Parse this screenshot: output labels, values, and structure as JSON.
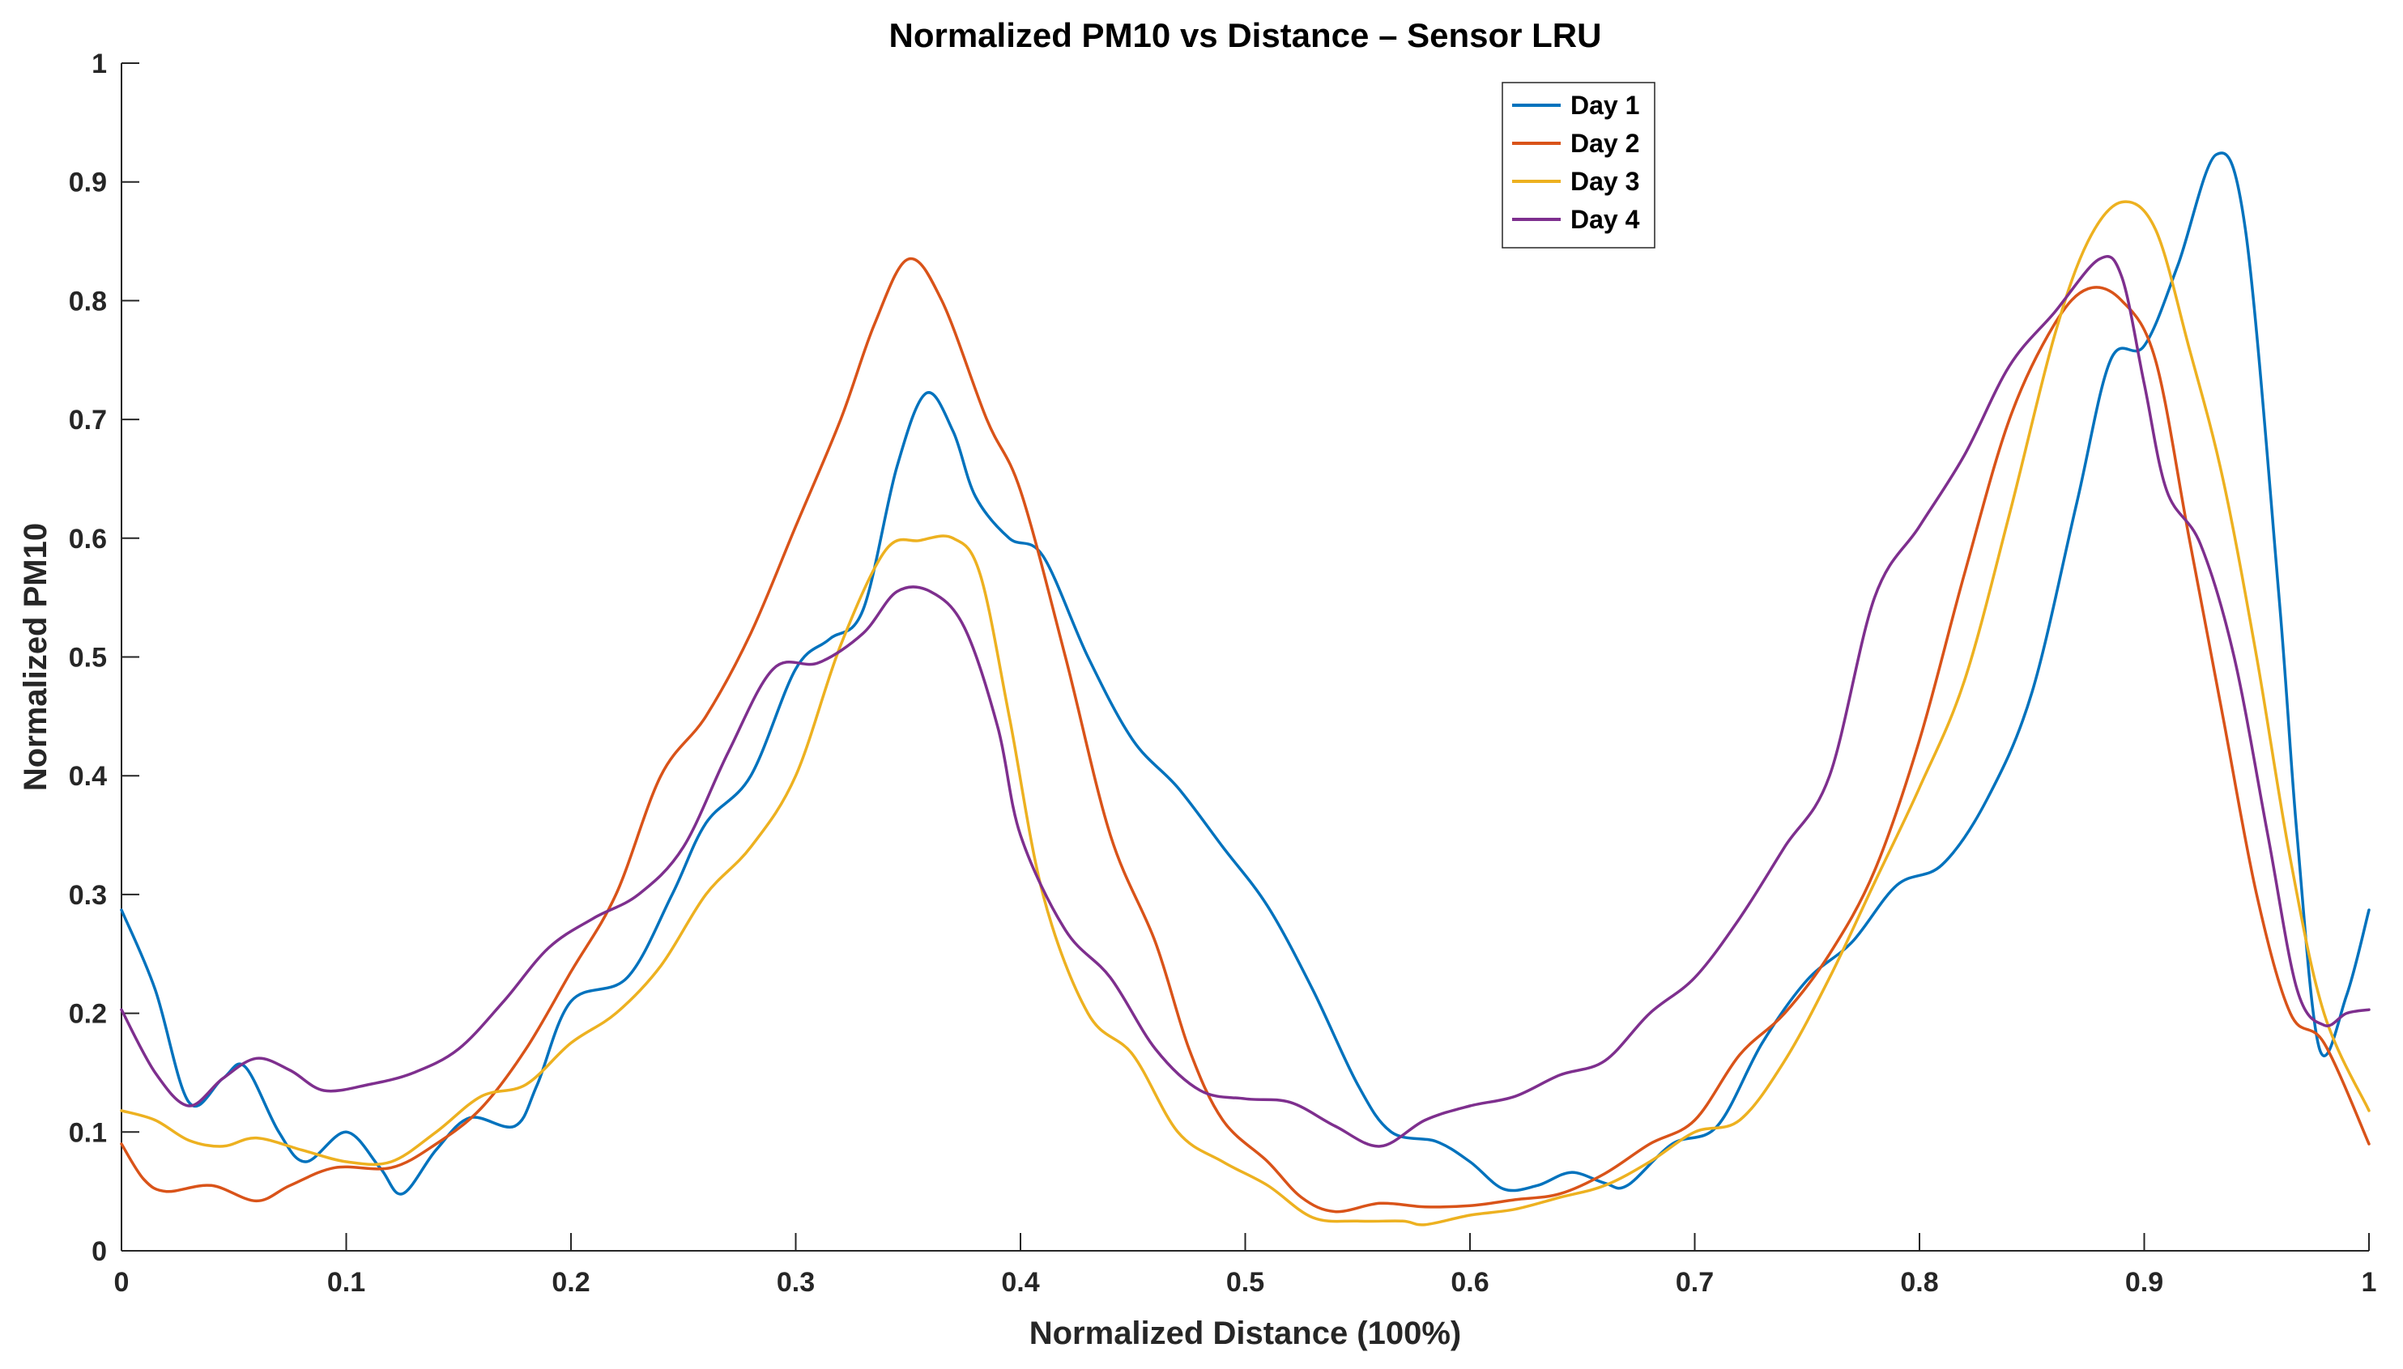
{
  "chart_data": {
    "type": "line",
    "title": "Normalized PM10 vs Distance – Sensor LRU",
    "xlabel": "Normalized Distance (100%)",
    "ylabel": "Normalized PM10",
    "xlim": [
      0,
      1
    ],
    "ylim": [
      0,
      1
    ],
    "x_ticks": [
      {
        "value": 0,
        "label": "0"
      },
      {
        "value": 0.1,
        "label": "0.1"
      },
      {
        "value": 0.2,
        "label": "0.2"
      },
      {
        "value": 0.3,
        "label": "0.3"
      },
      {
        "value": 0.4,
        "label": "0.4"
      },
      {
        "value": 0.5,
        "label": "0.5"
      },
      {
        "value": 0.6,
        "label": "0.6"
      },
      {
        "value": 0.7,
        "label": "0.7"
      },
      {
        "value": 0.8,
        "label": "0.8"
      },
      {
        "value": 0.9,
        "label": "0.9"
      },
      {
        "value": 1,
        "label": "1"
      }
    ],
    "y_ticks": [
      {
        "value": 0,
        "label": "0"
      },
      {
        "value": 0.1,
        "label": "0.1"
      },
      {
        "value": 0.2,
        "label": "0.2"
      },
      {
        "value": 0.3,
        "label": "0.3"
      },
      {
        "value": 0.4,
        "label": "0.4"
      },
      {
        "value": 0.5,
        "label": "0.5"
      },
      {
        "value": 0.6,
        "label": "0.6"
      },
      {
        "value": 0.7,
        "label": "0.7"
      },
      {
        "value": 0.8,
        "label": "0.8"
      },
      {
        "value": 0.9,
        "label": "0.9"
      },
      {
        "value": 1,
        "label": "1"
      }
    ],
    "grid": false,
    "legend_position": "top-right",
    "series": [
      {
        "name": "Day 1",
        "color": "#0072BD",
        "points": [
          [
            0,
            0.287
          ],
          [
            0.015,
            0.22
          ],
          [
            0.03,
            0.125
          ],
          [
            0.045,
            0.145
          ],
          [
            0.055,
            0.155
          ],
          [
            0.07,
            0.1
          ],
          [
            0.082,
            0.075
          ],
          [
            0.1,
            0.1
          ],
          [
            0.115,
            0.07
          ],
          [
            0.125,
            0.048
          ],
          [
            0.14,
            0.085
          ],
          [
            0.155,
            0.112
          ],
          [
            0.175,
            0.105
          ],
          [
            0.185,
            0.14
          ],
          [
            0.2,
            0.21
          ],
          [
            0.225,
            0.23
          ],
          [
            0.245,
            0.3
          ],
          [
            0.26,
            0.36
          ],
          [
            0.28,
            0.4
          ],
          [
            0.3,
            0.49
          ],
          [
            0.315,
            0.515
          ],
          [
            0.33,
            0.54
          ],
          [
            0.345,
            0.66
          ],
          [
            0.358,
            0.722
          ],
          [
            0.37,
            0.69
          ],
          [
            0.38,
            0.635
          ],
          [
            0.395,
            0.6
          ],
          [
            0.41,
            0.585
          ],
          [
            0.43,
            0.5
          ],
          [
            0.45,
            0.43
          ],
          [
            0.47,
            0.39
          ],
          [
            0.49,
            0.34
          ],
          [
            0.51,
            0.29
          ],
          [
            0.53,
            0.22
          ],
          [
            0.55,
            0.14
          ],
          [
            0.565,
            0.1
          ],
          [
            0.585,
            0.092
          ],
          [
            0.6,
            0.075
          ],
          [
            0.615,
            0.052
          ],
          [
            0.63,
            0.055
          ],
          [
            0.645,
            0.066
          ],
          [
            0.66,
            0.057
          ],
          [
            0.67,
            0.055
          ],
          [
            0.69,
            0.09
          ],
          [
            0.71,
            0.105
          ],
          [
            0.73,
            0.175
          ],
          [
            0.75,
            0.228
          ],
          [
            0.77,
            0.26
          ],
          [
            0.79,
            0.308
          ],
          [
            0.81,
            0.325
          ],
          [
            0.83,
            0.38
          ],
          [
            0.85,
            0.47
          ],
          [
            0.87,
            0.63
          ],
          [
            0.885,
            0.75
          ],
          [
            0.9,
            0.762
          ],
          [
            0.915,
            0.83
          ],
          [
            0.932,
            0.923
          ],
          [
            0.945,
            0.86
          ],
          [
            0.96,
            0.55
          ],
          [
            0.968,
            0.35
          ],
          [
            0.978,
            0.17
          ],
          [
            0.99,
            0.215
          ],
          [
            1.0,
            0.287
          ]
        ]
      },
      {
        "name": "Day 2",
        "color": "#D95319",
        "points": [
          [
            0,
            0.09
          ],
          [
            0.01,
            0.06
          ],
          [
            0.02,
            0.05
          ],
          [
            0.04,
            0.055
          ],
          [
            0.06,
            0.042
          ],
          [
            0.075,
            0.055
          ],
          [
            0.095,
            0.07
          ],
          [
            0.12,
            0.07
          ],
          [
            0.14,
            0.09
          ],
          [
            0.16,
            0.12
          ],
          [
            0.18,
            0.17
          ],
          [
            0.2,
            0.235
          ],
          [
            0.22,
            0.3
          ],
          [
            0.24,
            0.4
          ],
          [
            0.26,
            0.45
          ],
          [
            0.28,
            0.52
          ],
          [
            0.3,
            0.61
          ],
          [
            0.32,
            0.7
          ],
          [
            0.335,
            0.78
          ],
          [
            0.35,
            0.835
          ],
          [
            0.365,
            0.8
          ],
          [
            0.385,
            0.7
          ],
          [
            0.4,
            0.64
          ],
          [
            0.42,
            0.5
          ],
          [
            0.44,
            0.35
          ],
          [
            0.46,
            0.26
          ],
          [
            0.475,
            0.17
          ],
          [
            0.49,
            0.11
          ],
          [
            0.51,
            0.075
          ],
          [
            0.525,
            0.045
          ],
          [
            0.54,
            0.033
          ],
          [
            0.56,
            0.04
          ],
          [
            0.58,
            0.037
          ],
          [
            0.6,
            0.038
          ],
          [
            0.62,
            0.043
          ],
          [
            0.64,
            0.048
          ],
          [
            0.66,
            0.065
          ],
          [
            0.68,
            0.09
          ],
          [
            0.7,
            0.11
          ],
          [
            0.72,
            0.165
          ],
          [
            0.74,
            0.2
          ],
          [
            0.76,
            0.25
          ],
          [
            0.78,
            0.32
          ],
          [
            0.8,
            0.43
          ],
          [
            0.82,
            0.57
          ],
          [
            0.84,
            0.7
          ],
          [
            0.86,
            0.78
          ],
          [
            0.875,
            0.81
          ],
          [
            0.89,
            0.8
          ],
          [
            0.905,
            0.75
          ],
          [
            0.92,
            0.6
          ],
          [
            0.935,
            0.45
          ],
          [
            0.95,
            0.3
          ],
          [
            0.965,
            0.2
          ],
          [
            0.98,
            0.175
          ],
          [
            1.0,
            0.09
          ]
        ]
      },
      {
        "name": "Day 3",
        "color": "#EDB120",
        "points": [
          [
            0,
            0.118
          ],
          [
            0.015,
            0.11
          ],
          [
            0.03,
            0.093
          ],
          [
            0.045,
            0.088
          ],
          [
            0.06,
            0.095
          ],
          [
            0.08,
            0.085
          ],
          [
            0.1,
            0.075
          ],
          [
            0.12,
            0.075
          ],
          [
            0.14,
            0.1
          ],
          [
            0.16,
            0.13
          ],
          [
            0.18,
            0.14
          ],
          [
            0.2,
            0.175
          ],
          [
            0.22,
            0.2
          ],
          [
            0.24,
            0.24
          ],
          [
            0.26,
            0.3
          ],
          [
            0.28,
            0.34
          ],
          [
            0.3,
            0.4
          ],
          [
            0.32,
            0.51
          ],
          [
            0.34,
            0.59
          ],
          [
            0.355,
            0.598
          ],
          [
            0.37,
            0.6
          ],
          [
            0.382,
            0.57
          ],
          [
            0.395,
            0.45
          ],
          [
            0.41,
            0.3
          ],
          [
            0.43,
            0.2
          ],
          [
            0.45,
            0.165
          ],
          [
            0.47,
            0.1
          ],
          [
            0.49,
            0.075
          ],
          [
            0.51,
            0.055
          ],
          [
            0.53,
            0.028
          ],
          [
            0.55,
            0.025
          ],
          [
            0.57,
            0.025
          ],
          [
            0.58,
            0.022
          ],
          [
            0.6,
            0.03
          ],
          [
            0.62,
            0.035
          ],
          [
            0.64,
            0.045
          ],
          [
            0.66,
            0.055
          ],
          [
            0.68,
            0.075
          ],
          [
            0.7,
            0.1
          ],
          [
            0.72,
            0.11
          ],
          [
            0.74,
            0.16
          ],
          [
            0.76,
            0.23
          ],
          [
            0.78,
            0.31
          ],
          [
            0.8,
            0.39
          ],
          [
            0.82,
            0.48
          ],
          [
            0.84,
            0.62
          ],
          [
            0.86,
            0.77
          ],
          [
            0.875,
            0.85
          ],
          [
            0.89,
            0.883
          ],
          [
            0.905,
            0.86
          ],
          [
            0.92,
            0.76
          ],
          [
            0.935,
            0.65
          ],
          [
            0.95,
            0.5
          ],
          [
            0.965,
            0.33
          ],
          [
            0.98,
            0.2
          ],
          [
            1.0,
            0.118
          ]
        ]
      },
      {
        "name": "Day 4",
        "color": "#7E2F8E",
        "points": [
          [
            0,
            0.203
          ],
          [
            0.015,
            0.15
          ],
          [
            0.03,
            0.122
          ],
          [
            0.045,
            0.145
          ],
          [
            0.06,
            0.162
          ],
          [
            0.075,
            0.152
          ],
          [
            0.09,
            0.135
          ],
          [
            0.11,
            0.14
          ],
          [
            0.13,
            0.15
          ],
          [
            0.15,
            0.17
          ],
          [
            0.17,
            0.21
          ],
          [
            0.19,
            0.255
          ],
          [
            0.21,
            0.28
          ],
          [
            0.23,
            0.3
          ],
          [
            0.25,
            0.34
          ],
          [
            0.27,
            0.42
          ],
          [
            0.29,
            0.49
          ],
          [
            0.31,
            0.495
          ],
          [
            0.33,
            0.52
          ],
          [
            0.345,
            0.555
          ],
          [
            0.36,
            0.555
          ],
          [
            0.375,
            0.525
          ],
          [
            0.39,
            0.44
          ],
          [
            0.4,
            0.35
          ],
          [
            0.42,
            0.27
          ],
          [
            0.44,
            0.23
          ],
          [
            0.46,
            0.17
          ],
          [
            0.48,
            0.135
          ],
          [
            0.5,
            0.128
          ],
          [
            0.52,
            0.125
          ],
          [
            0.54,
            0.105
          ],
          [
            0.56,
            0.088
          ],
          [
            0.58,
            0.11
          ],
          [
            0.6,
            0.122
          ],
          [
            0.62,
            0.13
          ],
          [
            0.64,
            0.148
          ],
          [
            0.66,
            0.16
          ],
          [
            0.68,
            0.2
          ],
          [
            0.7,
            0.23
          ],
          [
            0.72,
            0.28
          ],
          [
            0.74,
            0.34
          ],
          [
            0.76,
            0.4
          ],
          [
            0.78,
            0.55
          ],
          [
            0.8,
            0.61
          ],
          [
            0.82,
            0.67
          ],
          [
            0.84,
            0.745
          ],
          [
            0.86,
            0.79
          ],
          [
            0.88,
            0.835
          ],
          [
            0.89,
            0.82
          ],
          [
            0.9,
            0.73
          ],
          [
            0.91,
            0.64
          ],
          [
            0.925,
            0.595
          ],
          [
            0.94,
            0.5
          ],
          [
            0.955,
            0.35
          ],
          [
            0.968,
            0.22
          ],
          [
            0.98,
            0.19
          ],
          [
            0.99,
            0.2
          ],
          [
            1.0,
            0.203
          ]
        ]
      }
    ]
  }
}
